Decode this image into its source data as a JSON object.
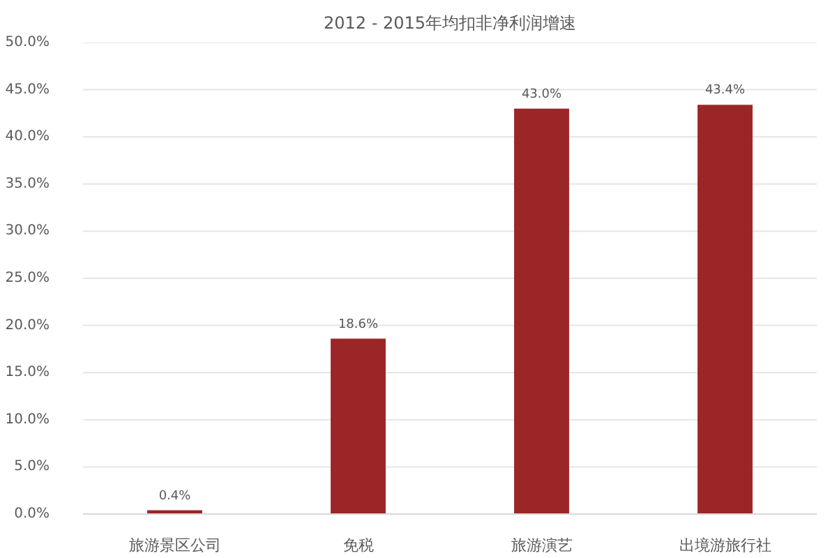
{
  "chart_data": {
    "type": "bar",
    "title": "2012 - 2015年均扣非净利润增速",
    "categories": [
      "旅游景区公司",
      "免税",
      "旅游演艺",
      "出境游旅行社"
    ],
    "values": [
      0.4,
      18.6,
      43.0,
      43.4
    ],
    "color": "#9b2628",
    "value_labels": [
      "0.4%",
      "18.6%",
      "43.0%",
      "43.4%"
    ],
    "ylim": [
      0,
      50
    ],
    "yticks": [
      {
        "value": 0,
        "label": "0.0%"
      },
      {
        "value": 5,
        "label": "5.0%"
      },
      {
        "value": 10,
        "label": "10.0%"
      },
      {
        "value": 15,
        "label": "15.0%"
      },
      {
        "value": 20,
        "label": "20.0%"
      },
      {
        "value": 25,
        "label": "25.0%"
      },
      {
        "value": 30,
        "label": "30.0%"
      },
      {
        "value": 35,
        "label": "35.0%"
      },
      {
        "value": 40,
        "label": "40.0%"
      },
      {
        "value": 45,
        "label": "45.0%"
      },
      {
        "value": 50,
        "label": "50.0%"
      }
    ],
    "grid": "y"
  }
}
